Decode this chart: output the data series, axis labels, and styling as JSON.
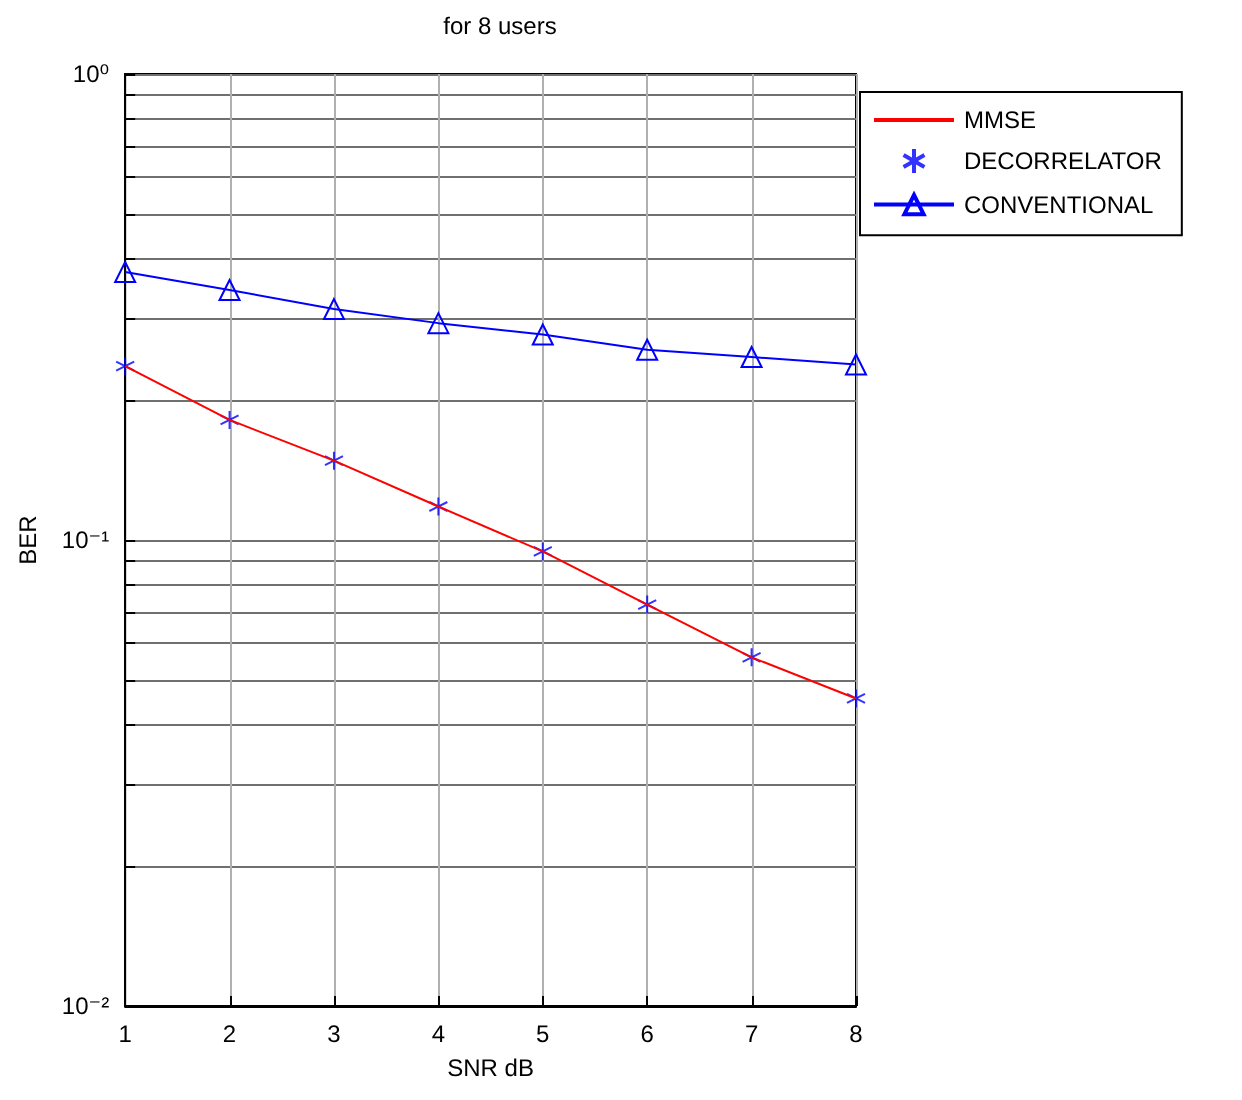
{
  "chart_data": {
    "type": "line",
    "title": "for 8 users",
    "xlabel": "SNR dB",
    "ylabel": "BER",
    "x": [
      1,
      2,
      3,
      4,
      5,
      6,
      7,
      8
    ],
    "series": [
      {
        "name": "MMSE",
        "color": "#ff0000",
        "type": "line",
        "marker": "none",
        "line_style": "solid",
        "values": [
          0.236,
          0.181,
          0.148,
          0.118,
          0.0945,
          0.0727,
          0.056,
          0.0457
        ]
      },
      {
        "name": "DECORRELATOR",
        "color": "#0000ff",
        "type": "scatter",
        "marker": "cross",
        "values": [
          0.236,
          0.181,
          0.148,
          0.118,
          0.0945,
          0.0727,
          0.056,
          0.0457
        ]
      },
      {
        "name": "CONVENTIONAL",
        "color": "#0000ff",
        "type": "line",
        "marker": "triangle",
        "line_style": "solid",
        "values": [
          0.376,
          0.344,
          0.313,
          0.292,
          0.276,
          0.256,
          0.247,
          0.238
        ]
      }
    ],
    "log": "y",
    "xlim": [
      1,
      8
    ],
    "xticks": [
      1,
      2,
      3,
      4,
      5,
      6,
      7,
      8
    ],
    "ylim": [
      0.01,
      1
    ],
    "yticks": [
      {
        "value": 0.01,
        "label": "10⁻²"
      },
      {
        "value": 0.02,
        "label": null
      },
      {
        "value": 0.03,
        "label": null
      },
      {
        "value": 0.04,
        "label": null
      },
      {
        "value": 0.05,
        "label": null
      },
      {
        "value": 0.06,
        "label": null
      },
      {
        "value": 0.07,
        "label": null
      },
      {
        "value": 0.08,
        "label": null
      },
      {
        "value": 0.09,
        "label": null
      },
      {
        "value": 0.1,
        "label": "10⁻¹"
      },
      {
        "value": 0.2,
        "label": null
      },
      {
        "value": 0.3,
        "label": null
      },
      {
        "value": 0.4,
        "label": null
      },
      {
        "value": 0.5,
        "label": null
      },
      {
        "value": 0.6,
        "label": null
      },
      {
        "value": 0.7,
        "label": null
      },
      {
        "value": 0.8,
        "label": null
      },
      {
        "value": 0.9,
        "label": null
      },
      {
        "value": 1,
        "label": "10⁰"
      }
    ],
    "grid": true,
    "legend": "top right"
  }
}
